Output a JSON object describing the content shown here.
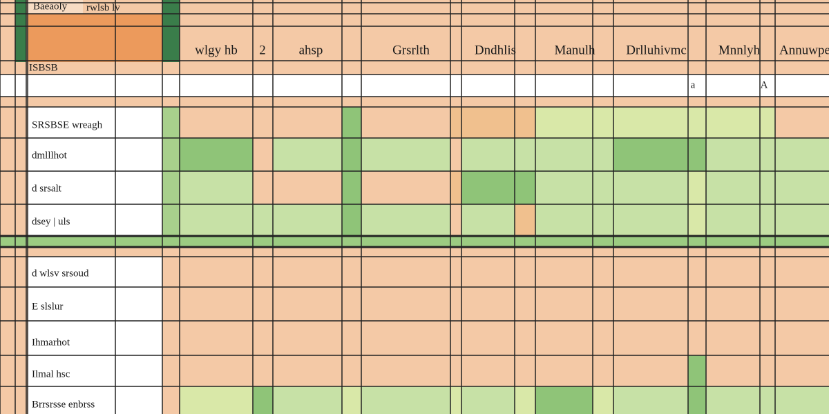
{
  "header": {
    "tab": "Baeaoly",
    "subtitle": "rwlsb lv",
    "sheet": "ISBSB",
    "columns": [
      "wlgy hb",
      "2",
      "ahsp",
      "Grsrlth",
      "Dndhlis",
      "Manulh",
      "Drlluhivmc",
      "Mnnlyh",
      "Annuwpe"
    ],
    "input_marks": [
      "a",
      "A"
    ]
  },
  "rows": [
    "SRSBSE wreagh",
    "dmlllhot",
    "d srsalt",
    "dsey | uls",
    "d wlsv srsoud",
    "E slslur",
    "Ihmarhot",
    "Ilmal hsc",
    "Brrsrsse enbrss"
  ]
}
